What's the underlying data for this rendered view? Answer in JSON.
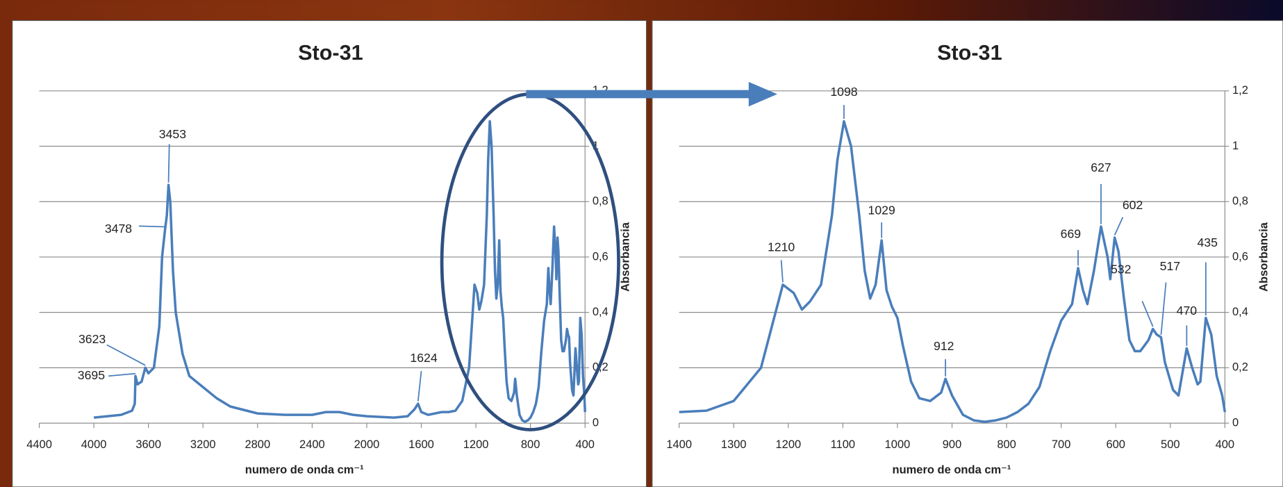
{
  "chart_data": [
    {
      "type": "line",
      "title": "Sto-31",
      "x_label": "numero de onda cm⁻¹",
      "y_label": "Absorbancia",
      "xlim": [
        4400,
        400
      ],
      "xticks": [
        4400,
        4000,
        3600,
        3200,
        2800,
        2400,
        2000,
        1600,
        1200,
        800,
        400
      ],
      "ylim": [
        0,
        1.2
      ],
      "yticks": [
        0,
        {
          "value": 0.2,
          "label": "0,2"
        },
        {
          "value": 0.4,
          "label": "0,4"
        },
        {
          "value": 0.6,
          "label": "0,6"
        },
        {
          "value": 0.8,
          "label": "0,8"
        },
        {
          "value": 1,
          "label": "1"
        },
        {
          "value": 1.2,
          "label": "1,2"
        }
      ],
      "grid": true,
      "x": [
        4000,
        3800,
        3720,
        3700,
        3695,
        3680,
        3650,
        3623,
        3600,
        3560,
        3520,
        3500,
        3478,
        3465,
        3453,
        3440,
        3420,
        3400,
        3350,
        3300,
        3200,
        3100,
        3000,
        2800,
        2600,
        2400,
        2300,
        2200,
        2100,
        2000,
        1800,
        1700,
        1650,
        1624,
        1600,
        1550,
        1500,
        1450,
        1400,
        1350,
        1300,
        1250,
        1230,
        1210,
        1190,
        1175,
        1160,
        1140,
        1120,
        1110,
        1098,
        1085,
        1070,
        1060,
        1050,
        1040,
        1029,
        1020,
        1010,
        1000,
        990,
        975,
        960,
        940,
        920,
        912,
        900,
        880,
        860,
        840,
        820,
        800,
        780,
        760,
        740,
        720,
        700,
        690,
        680,
        669,
        660,
        652,
        640,
        627,
        615,
        610,
        602,
        595,
        585,
        575,
        565,
        555,
        540,
        532,
        525,
        517,
        510,
        495,
        485,
        470,
        460,
        450,
        445,
        435,
        425,
        415,
        405,
        400
      ],
      "series": [
        {
          "color": "#4a7ebb",
          "values": [
            0.02,
            0.03,
            0.045,
            0.07,
            0.17,
            0.14,
            0.15,
            0.2,
            0.18,
            0.2,
            0.35,
            0.6,
            0.7,
            0.75,
            0.86,
            0.8,
            0.55,
            0.4,
            0.25,
            0.17,
            0.13,
            0.09,
            0.06,
            0.035,
            0.03,
            0.03,
            0.04,
            0.04,
            0.03,
            0.025,
            0.02,
            0.025,
            0.05,
            0.07,
            0.04,
            0.03,
            0.035,
            0.04,
            0.04,
            0.045,
            0.08,
            0.2,
            0.35,
            0.5,
            0.47,
            0.41,
            0.44,
            0.5,
            0.75,
            0.95,
            1.09,
            1.0,
            0.75,
            0.55,
            0.45,
            0.5,
            0.66,
            0.48,
            0.42,
            0.38,
            0.28,
            0.15,
            0.09,
            0.08,
            0.11,
            0.16,
            0.1,
            0.03,
            0.01,
            0.005,
            0.01,
            0.02,
            0.04,
            0.07,
            0.13,
            0.26,
            0.37,
            0.4,
            0.43,
            0.56,
            0.48,
            0.43,
            0.55,
            0.71,
            0.6,
            0.52,
            0.67,
            0.62,
            0.45,
            0.3,
            0.26,
            0.26,
            0.3,
            0.34,
            0.32,
            0.31,
            0.22,
            0.12,
            0.1,
            0.27,
            0.2,
            0.14,
            0.15,
            0.38,
            0.32,
            0.17,
            0.1,
            0.04
          ]
        }
      ],
      "annotations": [
        {
          "x": 3453,
          "label": "3453"
        },
        {
          "x": 3478,
          "label": "3478"
        },
        {
          "x": 3623,
          "label": "3623"
        },
        {
          "x": 3695,
          "label": "3695"
        },
        {
          "x": 1624,
          "label": "1624"
        }
      ]
    },
    {
      "type": "line",
      "title": "Sto-31",
      "x_label": "numero de onda cm⁻¹",
      "y_label": "Absorbancia",
      "xlim": [
        1400,
        400
      ],
      "xticks": [
        1400,
        1300,
        1200,
        1100,
        1000,
        900,
        800,
        700,
        600,
        500,
        400
      ],
      "ylim": [
        0,
        1.2
      ],
      "yticks": [
        0,
        {
          "value": 0.2,
          "label": "0,2"
        },
        {
          "value": 0.4,
          "label": "0,4"
        },
        {
          "value": 0.6,
          "label": "0,6"
        },
        {
          "value": 0.8,
          "label": "0,8"
        },
        {
          "value": 1,
          "label": "1"
        },
        {
          "value": 1.2,
          "label": "1,2"
        }
      ],
      "grid": true,
      "x": [
        1400,
        1350,
        1300,
        1250,
        1230,
        1210,
        1190,
        1175,
        1160,
        1140,
        1120,
        1110,
        1098,
        1085,
        1070,
        1060,
        1050,
        1040,
        1029,
        1020,
        1010,
        1000,
        990,
        975,
        960,
        940,
        920,
        912,
        900,
        880,
        860,
        840,
        820,
        800,
        780,
        760,
        740,
        720,
        700,
        690,
        680,
        669,
        660,
        652,
        640,
        627,
        615,
        610,
        602,
        595,
        585,
        575,
        565,
        555,
        540,
        532,
        525,
        517,
        510,
        495,
        485,
        470,
        460,
        450,
        445,
        435,
        425,
        415,
        405,
        400
      ],
      "series": [
        {
          "color": "#4a7ebb",
          "values": [
            0.04,
            0.045,
            0.08,
            0.2,
            0.35,
            0.5,
            0.47,
            0.41,
            0.44,
            0.5,
            0.75,
            0.95,
            1.09,
            1.0,
            0.75,
            0.55,
            0.45,
            0.5,
            0.66,
            0.48,
            0.42,
            0.38,
            0.28,
            0.15,
            0.09,
            0.08,
            0.11,
            0.16,
            0.1,
            0.03,
            0.01,
            0.005,
            0.01,
            0.02,
            0.04,
            0.07,
            0.13,
            0.26,
            0.37,
            0.4,
            0.43,
            0.56,
            0.48,
            0.43,
            0.55,
            0.71,
            0.6,
            0.52,
            0.67,
            0.62,
            0.45,
            0.3,
            0.26,
            0.26,
            0.3,
            0.34,
            0.32,
            0.31,
            0.22,
            0.12,
            0.1,
            0.27,
            0.2,
            0.14,
            0.15,
            0.38,
            0.32,
            0.17,
            0.1,
            0.04
          ]
        }
      ],
      "annotations": [
        {
          "x": 1210,
          "label": "1210"
        },
        {
          "x": 1098,
          "label": "1098"
        },
        {
          "x": 1029,
          "label": "1029"
        },
        {
          "x": 912,
          "label": "912"
        },
        {
          "x": 669,
          "label": "669"
        },
        {
          "x": 627,
          "label": "627"
        },
        {
          "x": 602,
          "label": "602"
        },
        {
          "x": 532,
          "label": "532"
        },
        {
          "x": 517,
          "label": "517"
        },
        {
          "x": 470,
          "label": "470"
        },
        {
          "x": 435,
          "label": "435"
        }
      ]
    }
  ]
}
